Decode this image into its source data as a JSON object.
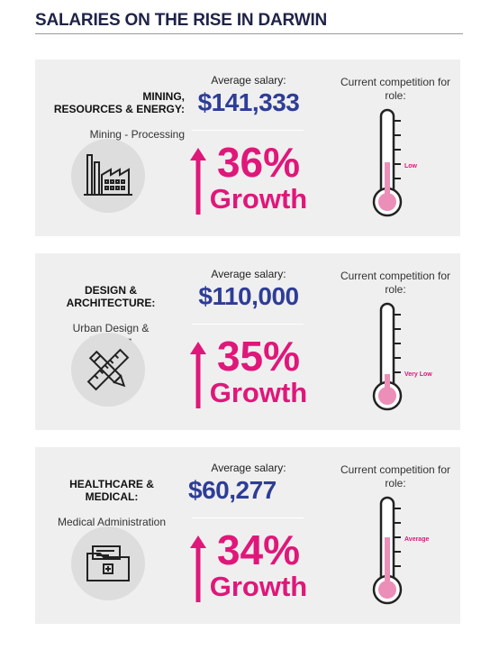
{
  "header": {
    "title": "SALARIES ON THE RISE IN DARWIN"
  },
  "cards": [
    {
      "sector_name": "MINING,\nRESOURCES & ENERGY:",
      "sector_sub": "Mining - Processing",
      "salary_label": "Average salary:",
      "salary": "$141,333",
      "growth_pct": "36%",
      "growth_word": "Growth",
      "competition_label": "Current competition for role:",
      "competition_level": "Low",
      "competition_fill": 0.35,
      "icon": "factory-icon"
    },
    {
      "sector_name": "DESIGN &\nARCHITECTURE:",
      "sector_sub": "Urban Design &\nPlanning",
      "salary_label": "Average salary:",
      "salary": "$110,000",
      "growth_pct": "35%",
      "growth_word": "Growth",
      "competition_label": "Current competition for role:",
      "competition_level": "Very Low",
      "competition_fill": 0.15,
      "icon": "pencil-ruler-icon"
    },
    {
      "sector_name": "HEALTHCARE &\nMEDICAL:",
      "sector_sub": "Medical Administration",
      "salary_label": "Average salary:",
      "salary": "$60,277",
      "growth_pct": "34%",
      "growth_word": "Growth",
      "competition_label": "Current competition for role:",
      "competition_level": "Average",
      "competition_fill": 0.5,
      "icon": "medical-folder-icon"
    }
  ],
  "colors": {
    "navy": "#1f2348",
    "salary_blue": "#2e3d96",
    "accent_pink": "#e0177a",
    "card_bg": "#efefef",
    "icon_bg": "#dddddd"
  }
}
